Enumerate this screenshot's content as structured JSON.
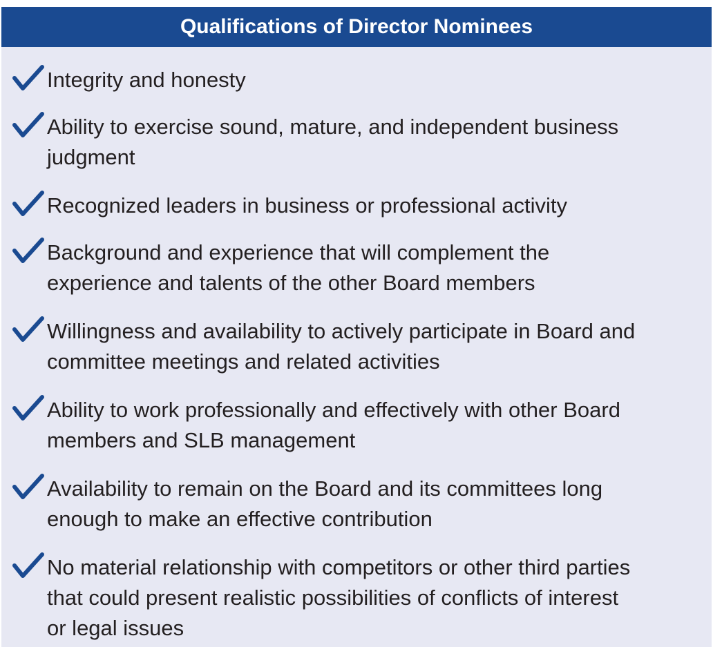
{
  "header": {
    "title": "Qualifications of Director Nominees"
  },
  "theme": {
    "header_bg": "#1a4a91",
    "panel_bg": "#e7e8f3",
    "check_color": "#1a4a91",
    "text_color": "#231f20"
  },
  "items": [
    {
      "icon": "checkmark-icon",
      "text": "Integrity and honesty"
    },
    {
      "icon": "checkmark-icon",
      "text": "Ability to exercise sound, mature, and independent business\njudgment"
    },
    {
      "icon": "checkmark-icon",
      "text": "Recognized leaders in business or professional activity"
    },
    {
      "icon": "checkmark-icon",
      "text": "Background and experience that will complement the\nexperience and talents of the other Board members"
    },
    {
      "icon": "checkmark-icon",
      "text": "Willingness and availability to actively participate in Board and\ncommittee meetings and related activities"
    },
    {
      "icon": "checkmark-icon",
      "text": "Ability to work professionally and effectively with other Board\nmembers and SLB management"
    },
    {
      "icon": "checkmark-icon",
      "text": "Availability to remain on the Board and its committees long\nenough to make an effective contribution"
    },
    {
      "icon": "checkmark-icon",
      "text": "No material relationship with competitors or other third parties\nthat could present realistic possibilities of conflicts of interest\nor legal issues"
    }
  ]
}
